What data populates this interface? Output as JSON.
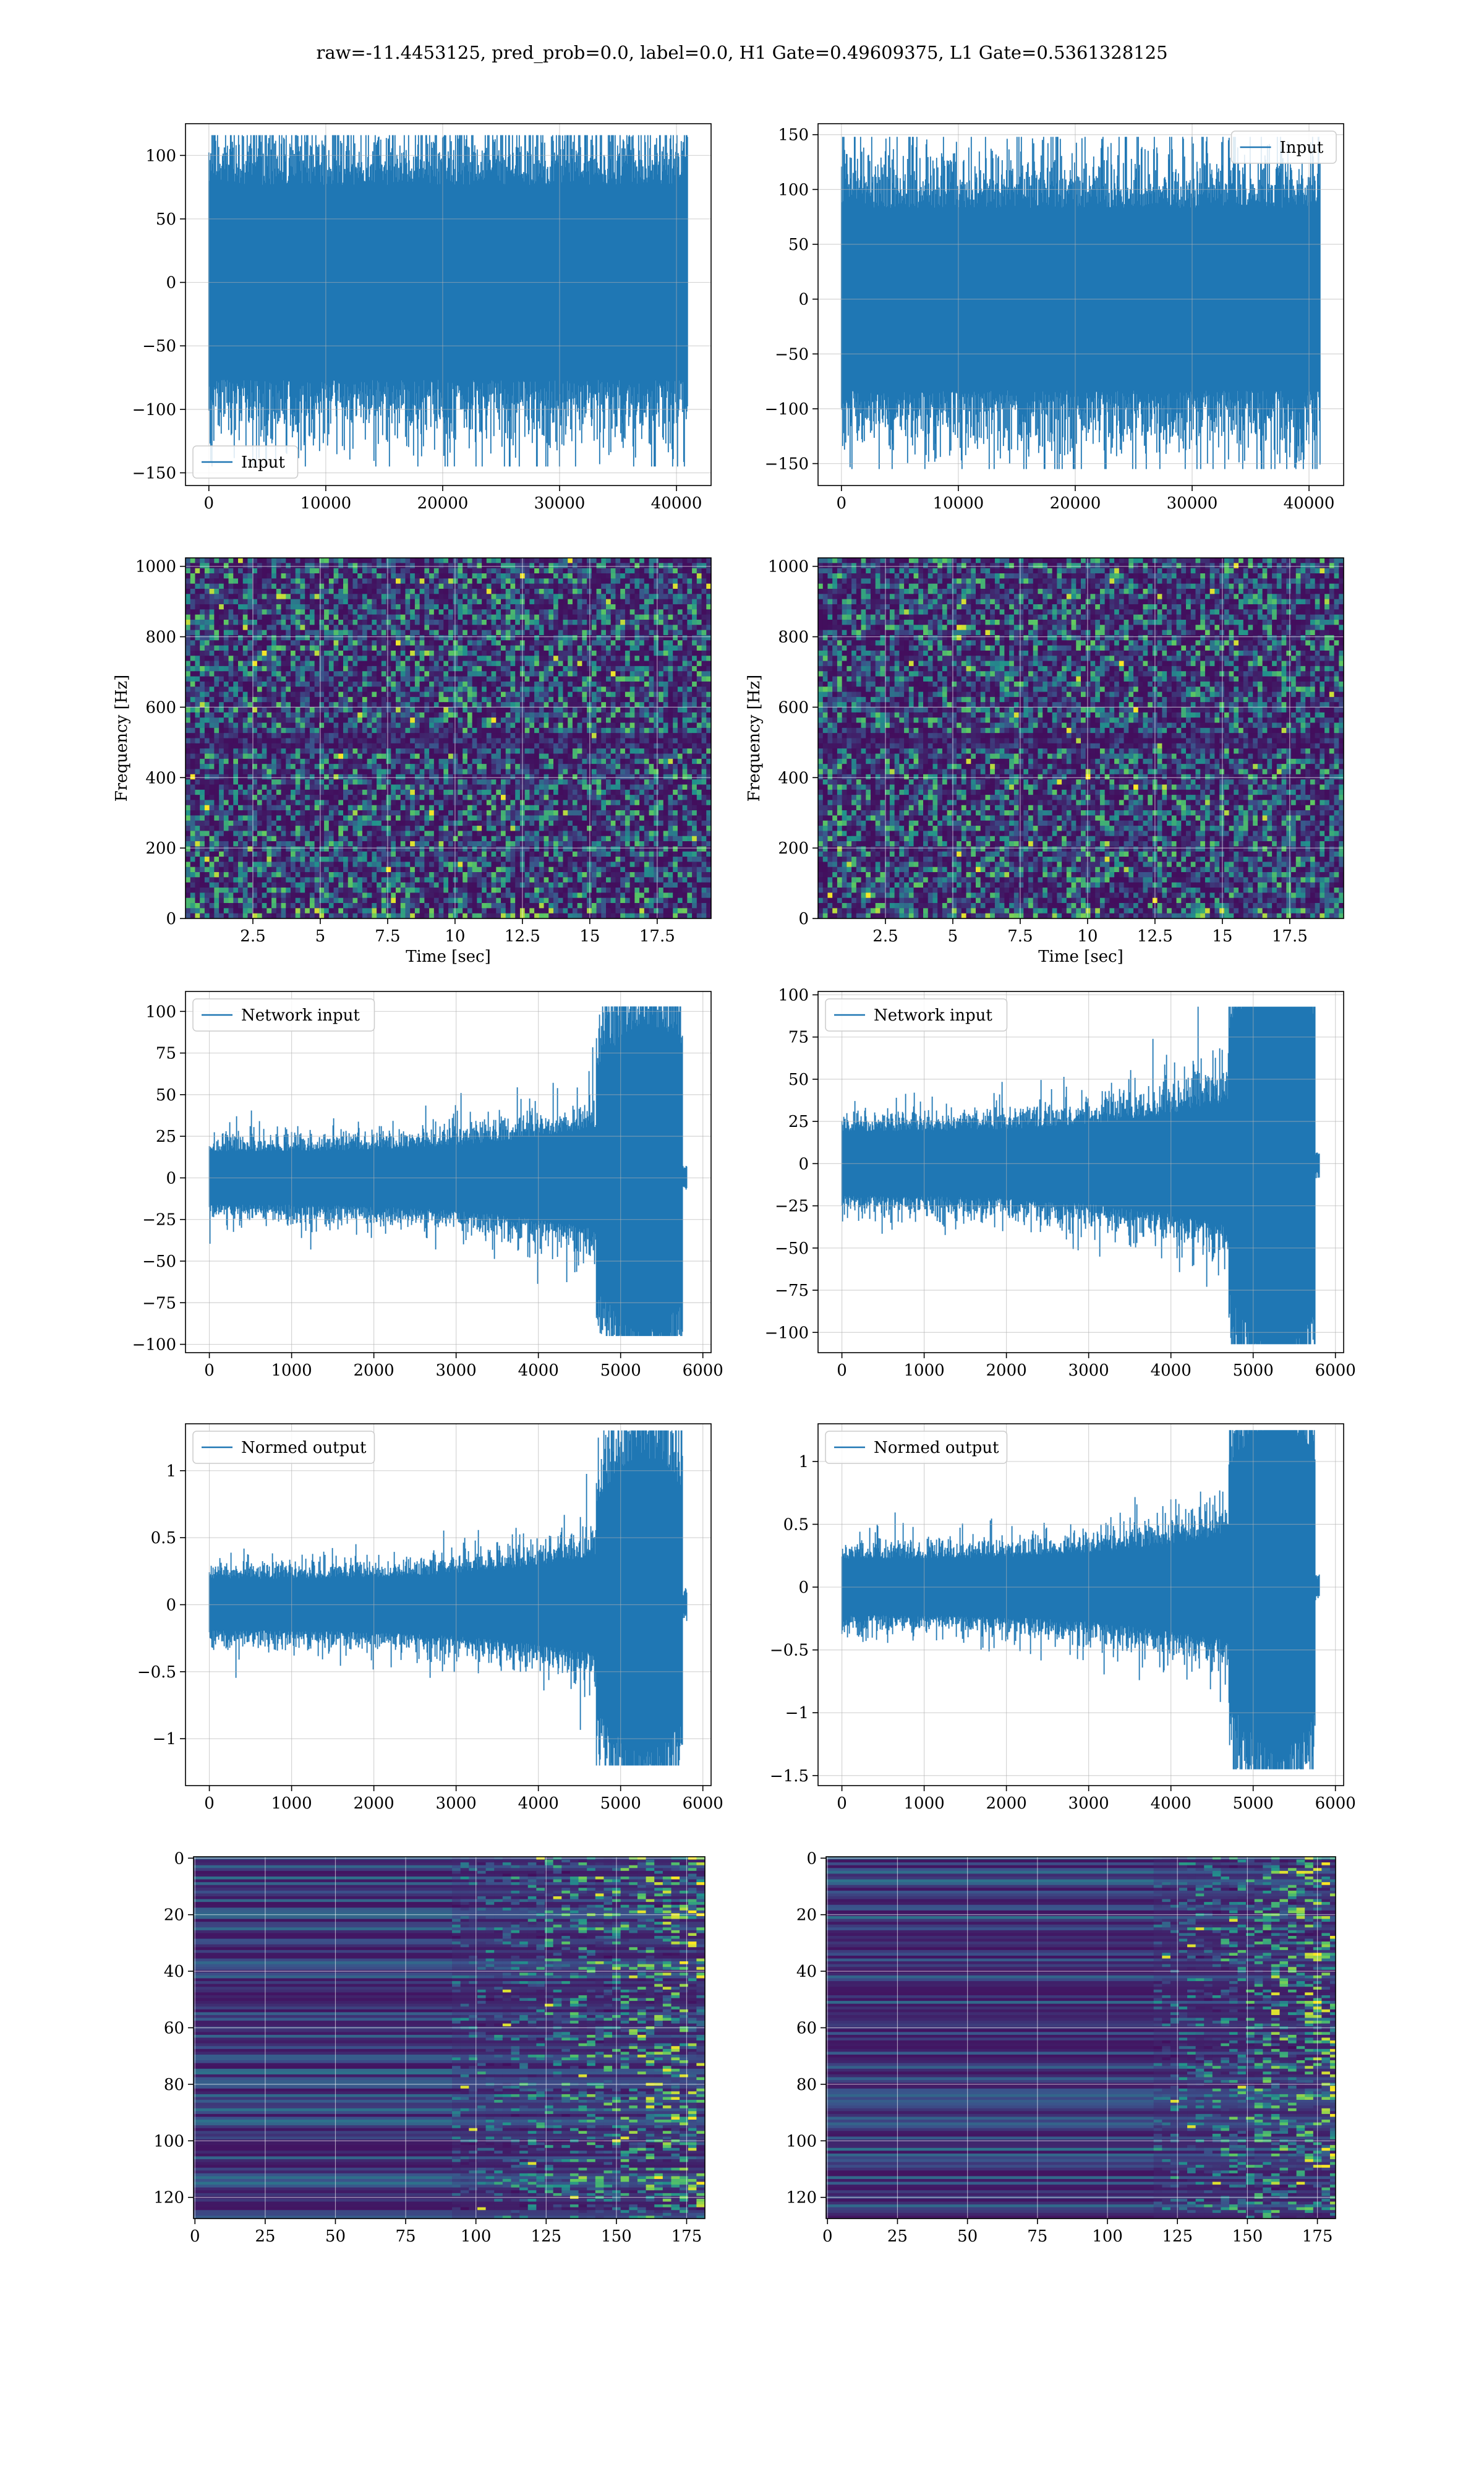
{
  "suptitle": "raw=-11.4453125, pred_prob=0.0, label=0.0, H1 Gate=0.49609375, L1 Gate=0.5361328125",
  "colors": {
    "line": "#1f77b4",
    "grid": "#b0b0b0",
    "viridis_low": "#440154",
    "viridis_high": "#fde725"
  },
  "chart_data": [
    {
      "id": "input-h1",
      "type": "line",
      "title": "",
      "xlabel": "",
      "ylabel": "",
      "legend": "lower-left",
      "legend_label": "Input",
      "xlim": [
        -2000,
        42960
      ],
      "ylim": [
        -160,
        125
      ],
      "xticks": [
        0,
        10000,
        20000,
        30000,
        40000
      ],
      "yticks": [
        -150,
        -100,
        -50,
        0,
        50,
        100
      ],
      "signal": {
        "n": 40960,
        "x_end": 40960,
        "envelope": "flat",
        "core_amplitude": 48,
        "peak_min": -145,
        "peak_max": 116
      },
      "grid": true
    },
    {
      "id": "input-l1",
      "type": "line",
      "title": "",
      "xlabel": "",
      "ylabel": "",
      "legend": "upper-right",
      "legend_label": "Input",
      "xlim": [
        -2000,
        42960
      ],
      "ylim": [
        -170,
        160
      ],
      "xticks": [
        0,
        10000,
        20000,
        30000,
        40000
      ],
      "yticks": [
        -150,
        -100,
        -50,
        0,
        50,
        100,
        150
      ],
      "signal": {
        "n": 40960,
        "x_end": 40960,
        "envelope": "flat",
        "core_amplitude": 52,
        "peak_min": -155,
        "peak_max": 148
      },
      "grid": true
    },
    {
      "id": "spectrogram-h1",
      "type": "heatmap",
      "title": "",
      "xlabel": "Time [sec]",
      "ylabel": "Frequency [Hz]",
      "xlim": [
        0.0,
        19.5
      ],
      "ylim": [
        0,
        1024
      ],
      "xticks": [
        2.5,
        5.0,
        7.5,
        10.0,
        12.5,
        15.0,
        17.5
      ],
      "yticks": [
        0,
        200,
        400,
        600,
        800,
        1000
      ],
      "colormap": "viridis",
      "dark_band_hz": 500,
      "grid": true
    },
    {
      "id": "spectrogram-l1",
      "type": "heatmap",
      "title": "",
      "xlabel": "Time [sec]",
      "ylabel": "Frequency [Hz]",
      "xlim": [
        0.0,
        19.5
      ],
      "ylim": [
        0,
        1024
      ],
      "xticks": [
        2.5,
        5.0,
        7.5,
        10.0,
        12.5,
        15.0,
        17.5
      ],
      "yticks": [
        0,
        200,
        400,
        600,
        800,
        1000
      ],
      "colormap": "viridis",
      "dark_band_hz": 500,
      "grid": true
    },
    {
      "id": "network-input-h1",
      "type": "line",
      "title": "",
      "xlabel": "",
      "ylabel": "",
      "legend": "upper-left",
      "legend_label": "Network input",
      "xlim": [
        -290,
        6100
      ],
      "ylim": [
        -105,
        112
      ],
      "xticks": [
        0,
        1000,
        2000,
        3000,
        4000,
        5000,
        6000
      ],
      "yticks": [
        -100,
        -75,
        -50,
        -25,
        0,
        25,
        50,
        75,
        100
      ],
      "signal": {
        "n": 5800,
        "x_end": 5800,
        "envelope": "chirp",
        "burst_start": 4700,
        "burst_end": 5750,
        "core_amplitude": 10,
        "peak_min": -95,
        "peak_max": 103,
        "tail_amplitude": 3
      },
      "grid": true
    },
    {
      "id": "network-input-l1",
      "type": "line",
      "title": "",
      "xlabel": "",
      "ylabel": "",
      "legend": "upper-left",
      "legend_label": "Network input",
      "xlim": [
        -290,
        6100
      ],
      "ylim": [
        -112,
        102
      ],
      "xticks": [
        0,
        1000,
        2000,
        3000,
        4000,
        5000,
        6000
      ],
      "yticks": [
        -100,
        -75,
        -50,
        -25,
        0,
        25,
        50,
        75,
        100
      ],
      "signal": {
        "n": 5800,
        "x_end": 5800,
        "envelope": "chirp",
        "burst_start": 4700,
        "burst_end": 5750,
        "core_amplitude": 12,
        "peak_min": -107,
        "peak_max": 93,
        "tail_amplitude": 3
      },
      "grid": true
    },
    {
      "id": "normed-output-h1",
      "type": "line",
      "title": "",
      "xlabel": "",
      "ylabel": "",
      "legend": "upper-left",
      "legend_label": "Normed output",
      "xlim": [
        -290,
        6100
      ],
      "ylim": [
        -1.35,
        1.35
      ],
      "xticks": [
        0,
        1000,
        2000,
        3000,
        4000,
        5000,
        6000
      ],
      "yticks": [
        -1.0,
        -0.5,
        0.0,
        0.5,
        1.0
      ],
      "signal": {
        "n": 5800,
        "x_end": 5800,
        "envelope": "chirp",
        "burst_start": 4700,
        "burst_end": 5750,
        "core_amplitude": 0.12,
        "peak_min": -1.2,
        "peak_max": 1.3,
        "tail_amplitude": 0.04
      },
      "grid": true
    },
    {
      "id": "normed-output-l1",
      "type": "line",
      "title": "",
      "xlabel": "",
      "ylabel": "",
      "legend": "upper-left",
      "legend_label": "Normed output",
      "xlim": [
        -290,
        6100
      ],
      "ylim": [
        -1.58,
        1.3
      ],
      "xticks": [
        0,
        1000,
        2000,
        3000,
        4000,
        5000,
        6000
      ],
      "yticks": [
        -1.5,
        -1.0,
        -0.5,
        0.0,
        0.5,
        1.0
      ],
      "signal": {
        "n": 5800,
        "x_end": 5800,
        "envelope": "chirp",
        "burst_start": 4700,
        "burst_end": 5750,
        "core_amplitude": 0.14,
        "peak_min": -1.45,
        "peak_max": 1.25,
        "tail_amplitude": 0.04
      },
      "grid": true
    },
    {
      "id": "feature-map-h1",
      "type": "heatmap",
      "title": "",
      "xlabel": "",
      "ylabel": "",
      "xlim": [
        -0.5,
        181.5
      ],
      "ylim": [
        127.5,
        -0.5
      ],
      "xticks": [
        0,
        25,
        50,
        75,
        100,
        125,
        150,
        175
      ],
      "yticks": [
        0,
        20,
        40,
        60,
        80,
        100,
        120
      ],
      "colormap": "viridis",
      "active_region_start": 100,
      "grid": true
    },
    {
      "id": "feature-map-l1",
      "type": "heatmap",
      "title": "",
      "xlabel": "",
      "ylabel": "",
      "xlim": [
        -0.5,
        181.5
      ],
      "ylim": [
        127.5,
        -0.5
      ],
      "xticks": [
        0,
        25,
        50,
        75,
        100,
        125,
        150,
        175
      ],
      "yticks": [
        0,
        20,
        40,
        60,
        80,
        100,
        120
      ],
      "colormap": "viridis",
      "active_region_start": 125,
      "grid": true
    }
  ]
}
